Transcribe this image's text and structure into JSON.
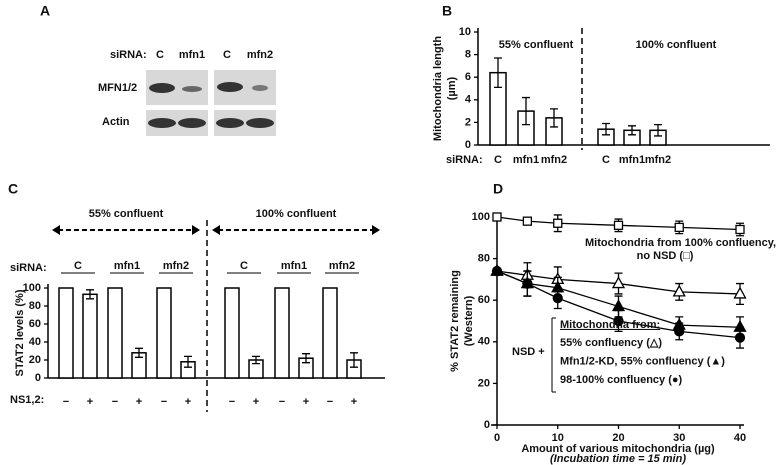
{
  "blot": {
    "panel_label": "A",
    "sirna_label": "siRNA:",
    "lanes": [
      "C",
      "mfn1",
      "C",
      "mfn2"
    ],
    "rows": [
      "MFN1/2",
      "Actin"
    ]
  },
  "chart_data": [
    {
      "type": "bar",
      "panel_label": "B",
      "ylabel": [
        "Mitochondria length",
        "(µm)"
      ],
      "sirna_label": "siRNA:",
      "groups": [
        "55% confluent",
        "100% confluent"
      ],
      "categories": [
        "C",
        "mfn1",
        "mfn2",
        "C",
        "mfn1",
        "mfn2"
      ],
      "values": [
        6.4,
        3.0,
        2.4,
        1.4,
        1.3,
        1.3
      ],
      "errors": [
        1.3,
        1.2,
        0.8,
        0.5,
        0.4,
        0.5
      ],
      "color": "#ffffff",
      "ylim": [
        0,
        10
      ],
      "yticks": [
        0,
        2,
        4,
        6,
        8,
        10
      ]
    },
    {
      "type": "bar",
      "panel_label": "C",
      "ylabel": [
        "STAT2 levels (%)"
      ],
      "sirna_label": "siRNA:",
      "xlabel": "NS1,2:",
      "groups": [
        "55% confluent",
        "100% confluent"
      ],
      "sirna": [
        "C",
        "mfn1",
        "mfn2",
        "C",
        "mfn1",
        "mfn2"
      ],
      "categories": [
        "−",
        "+",
        "−",
        "+",
        "−",
        "+",
        "−",
        "+",
        "−",
        "+",
        "−",
        "+"
      ],
      "values": [
        100,
        93,
        100,
        28,
        100,
        18,
        100,
        20,
        100,
        22,
        100,
        20
      ],
      "errors": [
        null,
        5,
        null,
        5,
        null,
        6,
        null,
        4,
        null,
        5,
        null,
        8
      ],
      "color": "#ffffff",
      "ylim": [
        0,
        100
      ],
      "yticks": [
        0,
        20,
        40,
        60,
        80,
        100
      ]
    },
    {
      "type": "line",
      "panel_label": "D",
      "ylabel": [
        "% STAT2 remaining",
        "(Western)"
      ],
      "xlabel": "Amount of various mitochondria (µg)",
      "xnote": "(Incubation time = 15 min)",
      "x": [
        0,
        5,
        10,
        20,
        30,
        40
      ],
      "xlim": [
        0,
        40
      ],
      "xticks": [
        0,
        10,
        20,
        30,
        40
      ],
      "ylim": [
        0,
        100
      ],
      "yticks": [
        0,
        20,
        40,
        60,
        80,
        100
      ],
      "annotations": [
        "Mitochondria from 100% confluency,",
        "no NSD (□)"
      ],
      "legend_title": "Mitochondria from:",
      "legend_prefix": "NSD +",
      "series": [
        {
          "color": "#000000",
          "marker": "square",
          "marker_fill": "#ffffff",
          "values": [
            100,
            98,
            97,
            96,
            95,
            94
          ],
          "errors": [
            null,
            1,
            4,
            3,
            3,
            3
          ]
        },
        {
          "name": "55% confluency (△)",
          "color": "#000000",
          "marker": "triangle",
          "marker_fill": "#ffffff",
          "values": [
            74,
            72,
            70,
            68,
            64,
            63
          ],
          "errors": [
            null,
            6,
            6,
            5,
            4,
            5
          ]
        },
        {
          "name": "Mfn1/2-KD, 55% confluency (▲)",
          "color": "#000000",
          "marker": "triangle",
          "marker_fill": "#000000",
          "values": [
            74,
            68,
            66,
            57,
            48,
            47
          ],
          "errors": [
            null,
            6,
            5,
            5,
            4,
            5
          ]
        },
        {
          "name": "98-100% confluency (●)",
          "color": "#000000",
          "marker": "circle",
          "marker_fill": "#000000",
          "values": [
            74,
            68,
            61,
            50,
            45,
            42
          ],
          "errors": [
            null,
            6,
            5,
            5,
            4,
            5
          ]
        }
      ]
    }
  ]
}
